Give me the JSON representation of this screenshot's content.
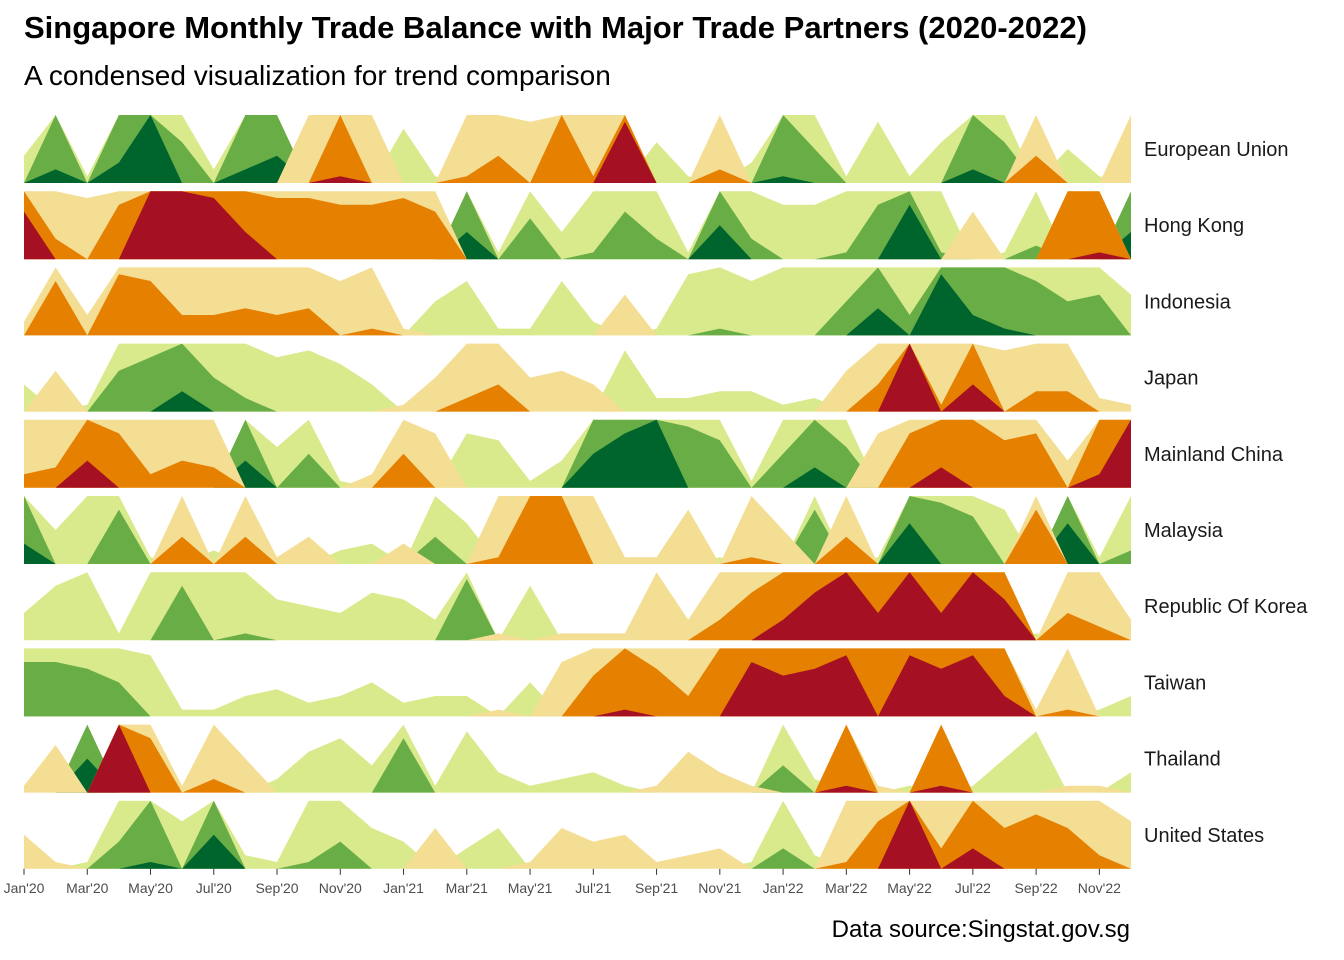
{
  "chart_data": {
    "type": "area",
    "subtype": "horizon",
    "title": "Singapore Monthly Trade Balance with Major Trade Partners (2020-2022)",
    "subtitle": "A condensed visualization for trend comparison",
    "caption": "Data source:Singstat.gov.sg",
    "xlabel": "",
    "ylabel": "",
    "grid": false,
    "legend": "none",
    "bands": 3,
    "band_colors": {
      "positive": [
        "#d9ea8c",
        "#69ad47",
        "#00642d"
      ],
      "negative": [
        "#f4de94",
        "#e68000",
        "#a51122"
      ]
    },
    "x": [
      "Jan'20",
      "Feb'20",
      "Mar'20",
      "Apr'20",
      "May'20",
      "Jun'20",
      "Jul'20",
      "Aug'20",
      "Sep'20",
      "Oct'20",
      "Nov'20",
      "Dec'20",
      "Jan'21",
      "Feb'21",
      "Mar'21",
      "Apr'21",
      "May'21",
      "Jun'21",
      "Jul'21",
      "Aug'21",
      "Sep'21",
      "Oct'21",
      "Nov'21",
      "Dec'21",
      "Jan'22",
      "Feb'22",
      "Mar'22",
      "Apr'22",
      "May'22",
      "Jun'22",
      "Jul'22",
      "Aug'22",
      "Sep'22",
      "Oct'22",
      "Nov'22",
      "Dec'22"
    ],
    "x_tick_labels": [
      "Jan'20",
      "Mar'20",
      "May'20",
      "Jul'20",
      "Sep'20",
      "Nov'20",
      "Jan'21",
      "Mar'21",
      "May'21",
      "Jul'21",
      "Sep'21",
      "Nov'21",
      "Jan'22",
      "Mar'22",
      "May'22",
      "Jul'22",
      "Sep'22",
      "Nov'22"
    ],
    "series": [
      {
        "name": "European Union",
        "values": [
          0.4,
          2.2,
          0.1,
          2.3,
          3.0,
          1.6,
          0.2,
          2.2,
          2.4,
          -1.0,
          -2.1,
          -1.0,
          0.8,
          0.1,
          -1.1,
          -1.4,
          -0.9,
          -2.0,
          -1.1,
          -2.9,
          0.6,
          0.1,
          -1.2,
          0.3,
          2.1,
          1.5,
          0.1,
          0.9,
          0.1,
          0.6,
          2.2,
          1.6,
          -1.4,
          0.5,
          0.1,
          -1.0
        ]
      },
      {
        "name": "Hong Kong",
        "values": [
          -2.7,
          -1.3,
          -0.9,
          -1.8,
          -3.0,
          -3.0,
          -2.9,
          -2.4,
          -1.9,
          -1.9,
          -1.8,
          -1.8,
          -1.9,
          -1.7,
          2.4,
          0.1,
          1.6,
          0.4,
          1.1,
          1.7,
          1.3,
          0.1,
          2.5,
          1.3,
          0.8,
          0.8,
          1.1,
          1.8,
          2.8,
          1.1,
          -0.7,
          0.1,
          1.2,
          -2.0,
          -2.1,
          2.4
        ]
      },
      {
        "name": "Indonesia",
        "values": [
          -0.2,
          -1.8,
          -0.3,
          -1.9,
          -1.8,
          -1.3,
          -1.3,
          -1.4,
          -1.3,
          -1.4,
          -0.8,
          -1.1,
          -0.1,
          0.5,
          0.8,
          0.1,
          0.1,
          0.8,
          0.2,
          -0.6,
          0.1,
          0.9,
          1.1,
          0.8,
          1.0,
          1.0,
          1.5,
          2.4,
          1.3,
          2.9,
          2.3,
          2.1,
          1.8,
          1.5,
          1.6,
          0.6
        ]
      },
      {
        "name": "Japan",
        "values": [
          0.4,
          -0.6,
          0.1,
          1.6,
          1.8,
          2.3,
          1.5,
          1.2,
          0.8,
          0.9,
          0.7,
          0.4,
          -0.1,
          -0.5,
          -1.2,
          -1.4,
          -0.5,
          -0.6,
          -0.4,
          0.9,
          0.2,
          0.2,
          0.3,
          0.3,
          0.1,
          0.2,
          -0.6,
          -1.4,
          -3.0,
          -1.1,
          -2.4,
          -0.9,
          -1.3,
          -1.3,
          -0.2,
          -0.1
        ]
      },
      {
        "name": "Mainland China",
        "values": [
          -1.2,
          -1.3,
          -2.4,
          -1.8,
          -1.2,
          -1.4,
          -1.3,
          2.4,
          0.6,
          1.5,
          0.1,
          -0.2,
          -1.5,
          -0.8,
          0.8,
          0.7,
          0.1,
          0.4,
          2.5,
          2.8,
          3.0,
          1.9,
          1.7,
          0.1,
          1.5,
          2.3,
          1.6,
          -0.8,
          -1.8,
          -2.3,
          -2.0,
          -1.7,
          -1.8,
          -0.4,
          -2.2,
          -3.0
        ]
      },
      {
        "name": "Malaysia",
        "values": [
          2.3,
          0.5,
          1.0,
          1.8,
          0.1,
          -1.4,
          0.2,
          -1.4,
          -0.1,
          -0.4,
          0.2,
          0.3,
          -0.3,
          1.4,
          0.6,
          -1.1,
          -2.0,
          -2.0,
          -1.0,
          -0.1,
          -0.1,
          -0.8,
          0.1,
          -1.1,
          -0.5,
          1.8,
          -1.4,
          0.1,
          2.6,
          1.9,
          1.7,
          0.8,
          -1.8,
          2.6,
          0.1,
          1.2
        ]
      },
      {
        "name": "Republic Of Korea",
        "values": [
          0.4,
          0.8,
          1.0,
          0.1,
          1.0,
          1.8,
          1.0,
          1.1,
          0.6,
          0.5,
          0.4,
          0.7,
          0.6,
          0.3,
          1.9,
          -0.1,
          0.8,
          -0.1,
          -0.1,
          -0.1,
          -1.0,
          -0.3,
          -1.3,
          -1.7,
          -2.3,
          -2.7,
          -3.0,
          -2.4,
          -3.0,
          -2.4,
          -3.0,
          -2.6,
          0.1,
          -1.4,
          -1.2,
          -0.3
        ]
      },
      {
        "name": "Taiwan",
        "values": [
          1.8,
          1.8,
          1.7,
          1.5,
          0.9,
          0.1,
          0.1,
          0.3,
          0.4,
          0.2,
          0.3,
          0.5,
          0.2,
          0.3,
          0.3,
          -0.1,
          0.5,
          -0.8,
          -1.6,
          -2.1,
          -1.7,
          -1.3,
          -2.0,
          -2.8,
          -2.6,
          -2.7,
          -2.9,
          -2.0,
          -2.9,
          -2.7,
          -2.9,
          -2.3,
          -0.1,
          -1.1,
          0.1,
          0.3
        ]
      },
      {
        "name": "Thailand",
        "values": [
          -0.1,
          -0.7,
          2.5,
          -3.0,
          -1.8,
          -0.1,
          -1.2,
          -0.5,
          0.2,
          0.6,
          0.8,
          0.4,
          1.8,
          0.1,
          0.9,
          0.3,
          0.1,
          0.2,
          0.3,
          0.1,
          -0.1,
          -0.6,
          -0.3,
          -0.1,
          1.4,
          0.2,
          -2.1,
          -0.1,
          0.1,
          -2.1,
          0.1,
          0.5,
          0.9,
          -0.1,
          -0.1,
          0.3
        ]
      },
      {
        "name": "United States",
        "values": [
          -0.5,
          -0.1,
          0.1,
          1.4,
          2.1,
          0.7,
          2.5,
          0.2,
          0.1,
          1.1,
          1.4,
          0.6,
          0.4,
          -0.6,
          0.3,
          0.6,
          -0.1,
          -0.6,
          -0.4,
          -0.5,
          -0.1,
          -0.2,
          -0.3,
          0.1,
          1.3,
          0.2,
          -1.1,
          -1.7,
          -3.0,
          -1.3,
          -2.3,
          -1.6,
          -1.8,
          -1.6,
          -1.2,
          -0.7
        ]
      }
    ]
  }
}
